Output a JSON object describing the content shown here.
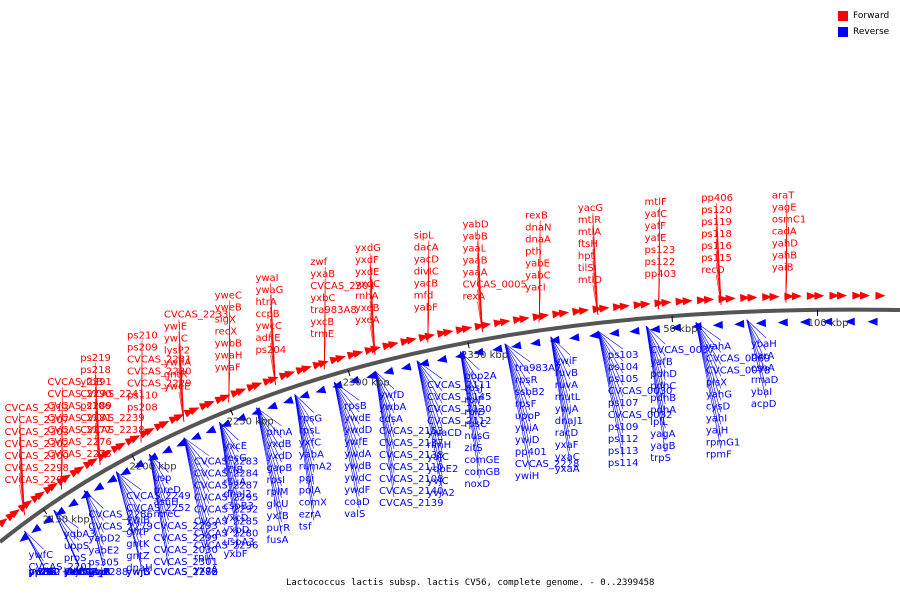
{
  "legend": {
    "forward_label": "Forward",
    "reverse_label": "Reverse",
    "forward_color": "#ff0000",
    "reverse_color": "#0000ff"
  },
  "caption": "Lactococcus lactis subsp. lactis CV56, complete genome. - 0..2399458",
  "ticks": [
    "2150 kbp",
    "2200 kbp",
    "2250 kbp",
    "2300 kbp",
    "2350 kbp",
    "50 kbp",
    "100 kbp"
  ],
  "forward_labels": [
    "CVCAS_2313",
    "CVCAS_2307",
    "CVCAS_2303",
    "CVCAS_2302",
    "CVCAS_2300",
    "CVCAS_2298",
    "CVCAS_2297",
    "CVCAS_2291",
    "CVCAS_2290",
    "CVCAS_2289",
    "CVCAS_2281",
    "CVCAS_2277",
    "CVCAS_2276",
    "CVCAS_2275",
    "ps219",
    "ps218",
    "yfbB",
    "CVCAS_2241",
    "ps106",
    "CVCAS_2239",
    "CVCAS_2238",
    "ps210",
    "ps209",
    "CVCAS_2231",
    "CVCAS_2230",
    "CVCAS_2229",
    "ps110",
    "ps208",
    "CVCAS_2233",
    "ywiE",
    "ywiC",
    "lysP2",
    "ywhA",
    "gntR",
    "yweE",
    "yweC",
    "yweB",
    "sigX",
    "recX",
    "ywbB",
    "ywaH",
    "ywaF",
    "ywaI",
    "ywaG",
    "htrA",
    "ccpB",
    "ywcC",
    "adhE",
    "ps204",
    "zwf",
    "yxaB",
    "CVCAS_2304",
    "yxbC",
    "tra983A8",
    "yxcB",
    "trmE",
    "yxdG",
    "yxdF",
    "yxdE",
    "yxdC",
    "rnhA",
    "yxeB",
    "yxeA",
    "sipL",
    "dacA",
    "yacD",
    "divIC",
    "yacB",
    "mfd",
    "yabF",
    "yabD",
    "yabB",
    "yaaL",
    "yaaB",
    "yaaA",
    "CVCAS_0005",
    "rexA",
    "rexB",
    "dnaN",
    "dnaA",
    "pth",
    "yabE",
    "yabC",
    "yacI",
    "yacG",
    "mtlR",
    "mtlA",
    "ftsH",
    "hpt",
    "tilS",
    "mtlD",
    "mtlF",
    "yafC",
    "yafF",
    "yafE",
    "ps123",
    "ps122",
    "pp403",
    "pp406",
    "ps120",
    "ps119",
    "ps118",
    "ps116",
    "ps115",
    "recO",
    "araT",
    "yagE",
    "osmC1",
    "cadA",
    "yahD",
    "yahB",
    "yaiB"
  ],
  "reverse_labels": [
    "ywfC",
    "CVCAS_2201",
    "ywfB",
    "ywfA",
    "yweA",
    "ywdG",
    "pp260",
    "pi115",
    "pi333",
    "pp132",
    "yqbA3",
    "uppS",
    "proS",
    "yvjA",
    "polC",
    "comGA",
    "yvjB",
    "yxbA",
    "mutS2",
    "CVCAS_2288",
    "CVCAS_2286",
    "CVCAS_2279",
    "yabD2",
    "yabE2",
    "ps305",
    "yvjH",
    "yvjI",
    "glnA",
    "glnR",
    "ptpL",
    "CVCAS_2249",
    "CVCAS_2252",
    "ywiB",
    "gntP",
    "gntK",
    "gntZ",
    "dnaH",
    "ywjG",
    "ywjF",
    "ywjB",
    "usp",
    "mreD",
    "asnH",
    "mreC",
    "CVCAS_2293",
    "CVCAS_2299",
    "CVCAS_2030",
    "CVCAS_2301",
    "CVCAS_2282",
    "CVCAS_2278",
    "CVCAS_2283",
    "CVCAS_2284",
    "CVCAS_2287",
    "CVCAS_2295",
    "CVCAS_2292",
    "CVCAS_2285",
    "CVCAS_2280",
    "CVCAS_2296",
    "rpiA",
    "yxcA",
    "yxcE",
    "recG",
    "rcfB",
    "rsuA",
    "dnaJ2",
    "cspB3",
    "yxcD",
    "yxbD",
    "uspA3",
    "yxbF",
    "phnA",
    "yxdB",
    "yxdD",
    "gapB",
    "rpsI",
    "rplM",
    "glcU",
    "yxfB",
    "purR",
    "fusA",
    "rpsG",
    "rpsL",
    "yxfC",
    "yabA",
    "rumA2",
    "pgi",
    "polA",
    "comX",
    "ezrA",
    "tsf",
    "rpsB",
    "ywdE",
    "ywdD",
    "ywfE",
    "ywdA",
    "ywdB",
    "ywdC",
    "ywdF",
    "coaD",
    "valS",
    "ywfD",
    "ywbA",
    "cdsA",
    "CVCAS_2153",
    "CVCAS_2137",
    "CVCAS_2138",
    "CVCAS_2110",
    "CVCAS_2108",
    "CVCAS_2140",
    "CVCAS_2139",
    "CVCAS_2111",
    "CVCAS_2145",
    "CVCAS_2120",
    "CVCAS_2112",
    "ywaCD",
    "rlmH",
    "yajC",
    "yqbE2",
    "yvjC",
    "yvjA2",
    "pbp2A",
    "rpsJ",
    "rplF",
    "rplD",
    "rpsC",
    "nusG",
    "zitS",
    "comGE",
    "comGB",
    "noxD",
    "tra983A7",
    "rpsR",
    "ssbB2",
    "rpsF",
    "uppP",
    "ywiA",
    "ywiD",
    "pp401",
    "CVCAS_2228",
    "ywiH",
    "ywiF",
    "ruvB",
    "ruvA",
    "mutL",
    "ywjA",
    "dnaJ1",
    "racD",
    "yxaF",
    "yxaC",
    "yxaA",
    "ps103",
    "ps104",
    "ps105",
    "CVCAS_0030",
    "ps107",
    "CVCAS_0032",
    "ps109",
    "ps112",
    "ps113",
    "ps114",
    "CVCAS_0037",
    "yafB",
    "pdhD",
    "pdhC",
    "pdhB",
    "pdhA",
    "lplL",
    "yagA",
    "yagB",
    "trpS",
    "yahA",
    "CVCAS_0069",
    "CVCAS_0078",
    "plsX",
    "yahG",
    "cysD",
    "yahI",
    "yajH",
    "rpmG1",
    "rpmF",
    "ybaH",
    "parA",
    "cshA",
    "rmaD",
    "ybaI",
    "acpD"
  ]
}
